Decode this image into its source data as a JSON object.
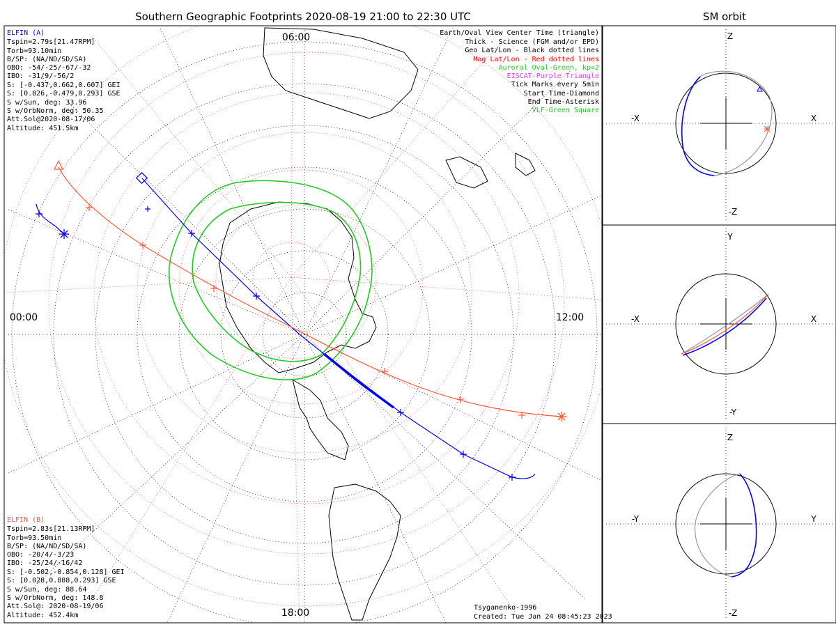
{
  "title": "Southern Geographic Footprints 2020-08-19 21:00 to 22:30 UTC",
  "orbit_title": "SM orbit",
  "colors": {
    "elfin_a": "#0000ff",
    "elfin_b": "#ff5a36",
    "oval": "#22cc22",
    "geo_grid": "#000000",
    "mag_grid": "#ff3333",
    "eiscat": "#dd44dd",
    "orbit_gray": "#999999"
  },
  "elfin_a": {
    "title": "ELFIN (A)",
    "lines": [
      "Tspin=2.79s[21.47RPM]",
      "Torb=93.10min",
      "B/SP: (NA/ND/SD/SA)",
      "OBO: -54/-25/-67/-32",
      "IBO: -31/9/-56/2",
      "S: [-0.437,0.662,0.607] GEI",
      "S: [0.826,-0.479,0.293] GSE",
      "S w/Sun, deg: 33.96",
      "S w/OrbNorm, deg: 50.35",
      "Att.Sol@2020-08-17/06",
      "Altitude: 451.5km"
    ]
  },
  "elfin_b": {
    "title": "ELFIN (B)",
    "lines": [
      "Tspin=2.83s[21.13RPM]",
      "Torb=93.50min",
      "B/SP: (NA/ND/SD/SA)",
      "OBO: -20/4/-3/23",
      "IBO: -25/24/-16/42",
      "S: [-0.502,-0.854,0.128] GEI",
      "S: [0.028,0.888,0.293] GSE",
      "S w/Sun, deg: 88.64",
      "S w/OrbNorm, deg: 148.8",
      "Att.Sol@: 2020-08-19/06",
      "Altitude: 452.4km"
    ]
  },
  "legend": [
    {
      "text": "Earth/Oval View Center Time (triangle)",
      "color": "#000000"
    },
    {
      "text": "Thick - Science (FGM and/or EPD)",
      "color": "#000000"
    },
    {
      "text": "Geo Lat/Lon - Black dotted lines",
      "color": "#000000"
    },
    {
      "text": "Mag Lat/Lon - Red dotted lines",
      "color": "#ff0000"
    },
    {
      "text": "Auroral Oval-Green, kp=2",
      "color": "#22cc22"
    },
    {
      "text": "EISCAT-Purple Triangle",
      "color": "#dd44dd"
    },
    {
      "text": "Tick Marks every 5min",
      "color": "#000000"
    },
    {
      "text": "Start Time-Diamond",
      "color": "#000000"
    },
    {
      "text": "End Time-Asterisk",
      "color": "#000000"
    },
    {
      "text": "VLF-Green Square",
      "color": "#22cc22"
    }
  ],
  "hours": {
    "top": "06:00",
    "left": "00:00",
    "right": "12:00",
    "bottom": "18:00"
  },
  "footer": {
    "model": "Tsyganenko-1996",
    "created": "Created: Tue Jan 24 08:45:23 2023"
  },
  "orbit_panels": [
    {
      "name": "xz",
      "top": "Z",
      "bottom": "-Z",
      "left": "-X",
      "right": "X"
    },
    {
      "name": "xy",
      "top": "Y",
      "bottom": "-Y",
      "left": "-X",
      "right": "X"
    },
    {
      "name": "yz",
      "top": "Z",
      "bottom": "-Z",
      "left": "-Y",
      "right": "Y"
    }
  ]
}
